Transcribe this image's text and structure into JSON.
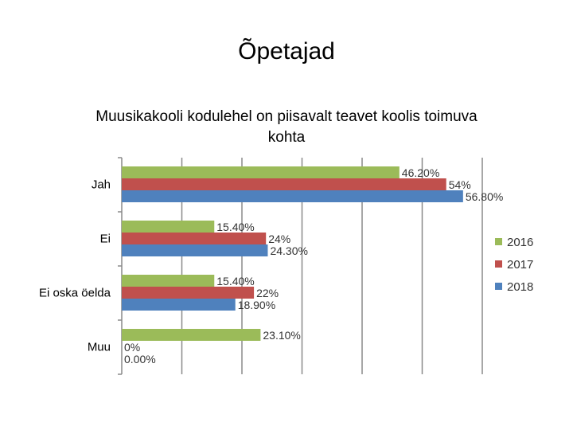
{
  "slide_title": "Õpetajad",
  "chart_data": {
    "type": "bar",
    "orientation": "horizontal",
    "title": "Muusikakooli kodulehel on piisavalt teavet koolis toimuva kohta",
    "title_lines": [
      "Muusikakooli kodulehel on piisavalt teavet koolis toimuva",
      "kohta"
    ],
    "categories": [
      "Jah",
      "Ei",
      "Ei oska öelda",
      "Muu"
    ],
    "series": [
      {
        "name": "2016",
        "color": "#9bbb59",
        "values": [
          46.2,
          15.4,
          15.4,
          23.1
        ],
        "labels": [
          "46.20%",
          "15.40%",
          "15.40%",
          "23.10%"
        ]
      },
      {
        "name": "2017",
        "color": "#c0504d",
        "values": [
          54,
          24,
          22,
          0
        ],
        "labels": [
          "54%",
          "24%",
          "22%",
          "0%"
        ]
      },
      {
        "name": "2018",
        "color": "#4f81bd",
        "values": [
          56.8,
          24.3,
          18.9,
          0
        ],
        "labels": [
          "56.80%",
          "24.30%",
          "18.90%",
          "0.00%"
        ]
      }
    ],
    "xlim": [
      0,
      60
    ],
    "grid": true,
    "legend": "right"
  }
}
